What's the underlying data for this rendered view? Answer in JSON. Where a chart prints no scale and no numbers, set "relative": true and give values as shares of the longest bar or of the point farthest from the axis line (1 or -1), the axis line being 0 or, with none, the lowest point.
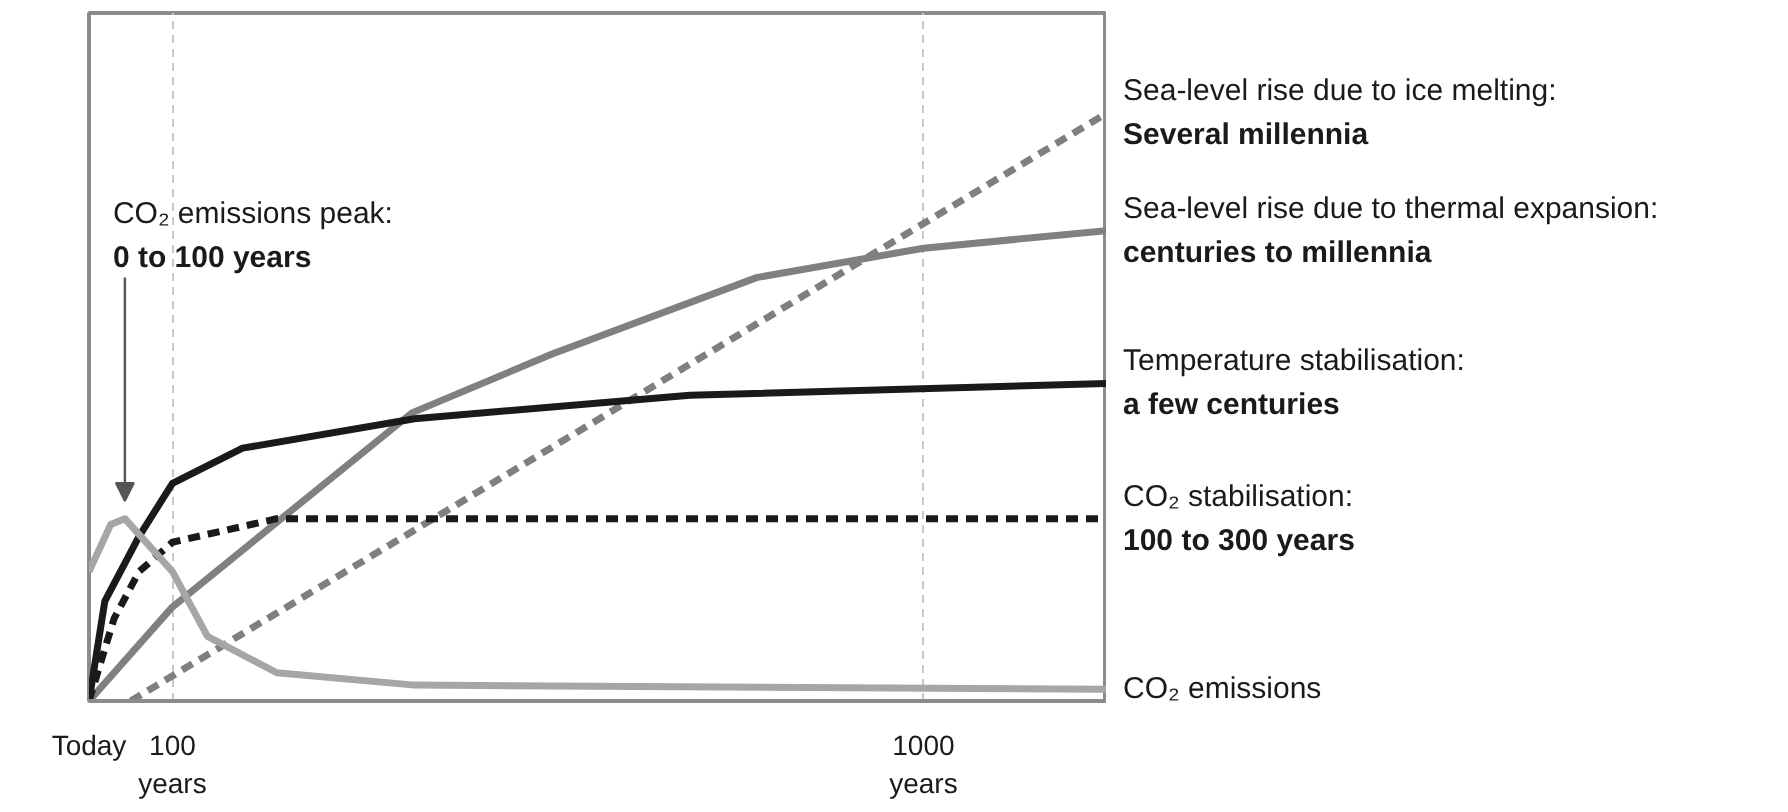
{
  "chart_data": {
    "type": "line",
    "relative": true,
    "grid": "x",
    "xlim": [
      0,
      1220
    ],
    "xticks": [
      {
        "value": 0,
        "label": "Today"
      },
      {
        "value": 100,
        "label": "100\nyears"
      },
      {
        "value": 1000,
        "label": "1000\nyears"
      }
    ],
    "series": [
      {
        "name": "Sea-level rise due to ice melting:\nSeveral millennia",
        "color": "#7f7f7f",
        "line_style": "dashed",
        "x": [
          50,
          1220
        ],
        "values": [
          0,
          1.0
        ]
      },
      {
        "name": "Sea-level rise due to thermal expansion:\ncenturies to millennia",
        "color": "#808080",
        "line_style": "solid",
        "x": [
          0,
          100,
          387,
          555,
          800,
          1000,
          1220
        ],
        "values": [
          0,
          0.16,
          0.49,
          0.59,
          0.72,
          0.77,
          0.8
        ]
      },
      {
        "name": "Temperature stabilisation:\na few centuries",
        "color": "#1a1a1a",
        "line_style": "solid",
        "x": [
          0,
          19,
          60,
          100,
          184,
          390,
          720,
          1220
        ],
        "values": [
          0,
          0.17,
          0.28,
          0.37,
          0.43,
          0.48,
          0.52,
          0.54
        ]
      },
      {
        "name": "CO₂ stabilisation:\n100 to 300 years",
        "color": "#1a1a1a",
        "line_style": "dashed",
        "x": [
          0,
          30,
          60,
          100,
          225,
          1220
        ],
        "values": [
          0,
          0.14,
          0.22,
          0.27,
          0.31,
          0.31
        ]
      },
      {
        "name": "CO₂ emissions",
        "color": "#a6a6a6",
        "line_style": "solid",
        "x": [
          0,
          26,
          43,
          100,
          142,
          225,
          390,
          1220
        ],
        "values": [
          0.22,
          0.3,
          0.31,
          0.22,
          0.11,
          0.048,
          0.027,
          0.02
        ]
      }
    ],
    "annotations": [
      {
        "text": "CO₂ emissions peak:\n0 to 100 years",
        "x": 43,
        "y": 0.31
      }
    ]
  }
}
